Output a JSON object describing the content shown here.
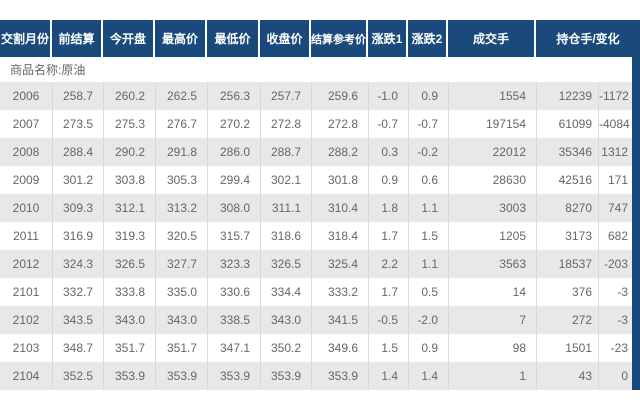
{
  "product": {
    "label": "商品名称:原油"
  },
  "table": {
    "headers": [
      "交割月份",
      "前结算",
      "今开盘",
      "最高价",
      "最低价",
      "收盘价",
      "结算参考价",
      "涨跌1",
      "涨跌2",
      "成交手",
      "持仓手/变化"
    ],
    "rows": [
      [
        "2006",
        "258.7",
        "260.2",
        "262.5",
        "256.3",
        "257.7",
        "259.6",
        "-1.0",
        "0.9",
        "1554",
        "12239",
        "-1172"
      ],
      [
        "2007",
        "273.5",
        "275.3",
        "276.7",
        "270.2",
        "272.8",
        "272.8",
        "-0.7",
        "-0.7",
        "197154",
        "61099",
        "-4084"
      ],
      [
        "2008",
        "288.4",
        "290.2",
        "291.8",
        "286.0",
        "288.7",
        "288.2",
        "0.3",
        "-0.2",
        "22012",
        "35346",
        "1312"
      ],
      [
        "2009",
        "301.2",
        "303.8",
        "305.3",
        "299.4",
        "302.1",
        "301.8",
        "0.9",
        "0.6",
        "28630",
        "42516",
        "171"
      ],
      [
        "2010",
        "309.3",
        "312.1",
        "313.2",
        "308.0",
        "311.1",
        "310.4",
        "1.8",
        "1.1",
        "3003",
        "8270",
        "747"
      ],
      [
        "2011",
        "316.9",
        "319.3",
        "320.5",
        "315.7",
        "318.6",
        "318.4",
        "1.7",
        "1.5",
        "1205",
        "3173",
        "682"
      ],
      [
        "2012",
        "324.3",
        "326.5",
        "327.7",
        "323.3",
        "326.5",
        "325.4",
        "2.2",
        "1.1",
        "3563",
        "18537",
        "-203"
      ],
      [
        "2101",
        "332.7",
        "333.8",
        "335.0",
        "330.6",
        "334.4",
        "333.2",
        "1.7",
        "0.5",
        "14",
        "376",
        "-3"
      ],
      [
        "2102",
        "343.5",
        "343.0",
        "343.0",
        "338.5",
        "343.0",
        "341.5",
        "-0.5",
        "-2.0",
        "7",
        "272",
        "-3"
      ],
      [
        "2103",
        "348.7",
        "351.7",
        "351.7",
        "347.1",
        "350.2",
        "349.6",
        "1.5",
        "0.9",
        "98",
        "1501",
        "-23"
      ],
      [
        "2104",
        "352.5",
        "353.9",
        "353.9",
        "353.9",
        "353.9",
        "353.9",
        "1.4",
        "1.4",
        "1",
        "43",
        "0"
      ]
    ]
  },
  "colors": {
    "header_bg": "#1a4a7b",
    "stripe_bg": "#e8e8e8",
    "text": "#666666"
  }
}
